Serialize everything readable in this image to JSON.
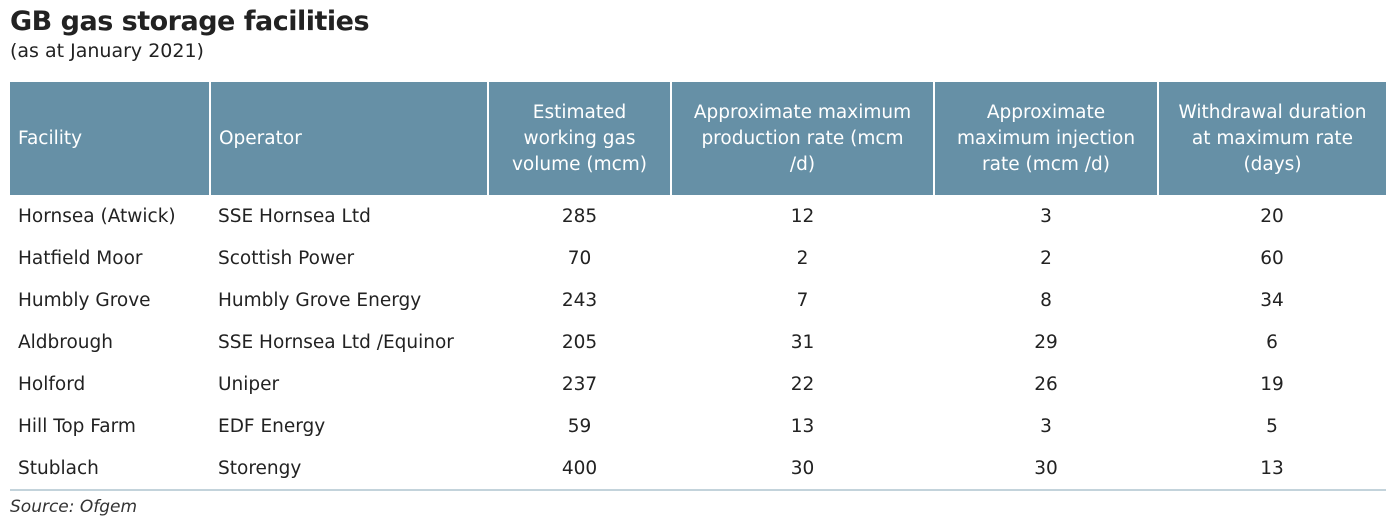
{
  "header": {
    "title": "GB gas storage facilities",
    "subtitle": "(as at January 2021)"
  },
  "table": {
    "columns": [
      "Facility",
      "Operator",
      "Estimated working gas volume (mcm)",
      "Approximate maximum production rate (mcm /d)",
      "Approximate maximum injection rate (mcm /d)",
      "Withdrawal duration at maximum rate (days)"
    ],
    "rows": [
      [
        "Hornsea (Atwick)",
        "SSE Hornsea Ltd",
        285,
        12,
        3,
        20
      ],
      [
        "Hatfield Moor",
        "Scottish Power",
        70,
        2,
        2,
        60
      ],
      [
        "Humbly Grove",
        "Humbly Grove Energy",
        243,
        7,
        8,
        34
      ],
      [
        "Aldbrough",
        "SSE Hornsea Ltd /Equinor",
        205,
        31,
        29,
        6
      ],
      [
        "Holford",
        "Uniper",
        237,
        22,
        26,
        19
      ],
      [
        "Hill Top Farm",
        "EDF Energy",
        59,
        13,
        3,
        5
      ],
      [
        "Stublach",
        "Storengy",
        400,
        30,
        30,
        13
      ]
    ]
  },
  "source": "Source: Ofgem"
}
